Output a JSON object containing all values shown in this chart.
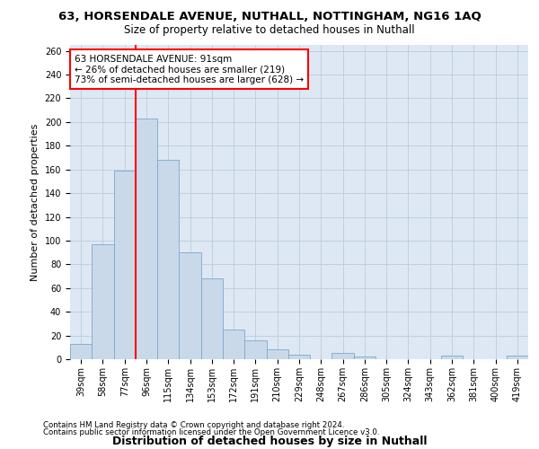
{
  "title_line1": "63, HORSENDALE AVENUE, NUTHALL, NOTTINGHAM, NG16 1AQ",
  "title_line2": "Size of property relative to detached houses in Nuthall",
  "xlabel": "Distribution of detached houses by size in Nuthall",
  "ylabel": "Number of detached properties",
  "categories": [
    "39sqm",
    "58sqm",
    "77sqm",
    "96sqm",
    "115sqm",
    "134sqm",
    "153sqm",
    "172sqm",
    "191sqm",
    "210sqm",
    "229sqm",
    "248sqm",
    "267sqm",
    "286sqm",
    "305sqm",
    "324sqm",
    "343sqm",
    "362sqm",
    "381sqm",
    "400sqm",
    "419sqm"
  ],
  "values": [
    13,
    97,
    159,
    203,
    168,
    90,
    68,
    25,
    16,
    8,
    4,
    0,
    5,
    2,
    0,
    0,
    0,
    3,
    0,
    0,
    3
  ],
  "bar_color": "#c9d9ea",
  "bar_edge_color": "#7aaac8",
  "vline_x": 2.5,
  "vline_color": "red",
  "annotation_text": "63 HORSENDALE AVENUE: 91sqm\n← 26% of detached houses are smaller (219)\n73% of semi-detached houses are larger (628) →",
  "annotation_box_color": "white",
  "annotation_box_edge_color": "red",
  "ylim": [
    0,
    265
  ],
  "yticks": [
    0,
    20,
    40,
    60,
    80,
    100,
    120,
    140,
    160,
    180,
    200,
    220,
    240,
    260
  ],
  "grid_color": "#bbccdd",
  "background_color": "#dde8f4",
  "footer_line1": "Contains HM Land Registry data © Crown copyright and database right 2024.",
  "footer_line2": "Contains public sector information licensed under the Open Government Licence v3.0.",
  "title_fontsize": 9.5,
  "subtitle_fontsize": 8.5,
  "ylabel_fontsize": 8,
  "xlabel_fontsize": 9,
  "tick_fontsize": 7,
  "annotation_fontsize": 7.5,
  "footer_fontsize": 6.2
}
